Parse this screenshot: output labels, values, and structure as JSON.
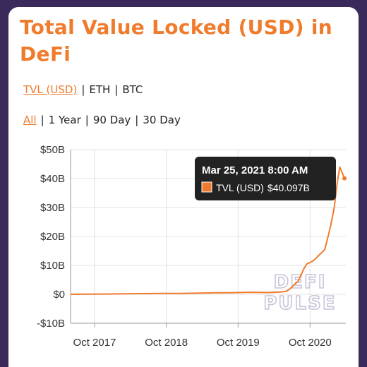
{
  "title": "Total Value Locked (USD) in DeFi",
  "currency_toggle": {
    "options": [
      "TVL (USD)",
      "ETH",
      "BTC"
    ],
    "active": 0
  },
  "range_toggle": {
    "options": [
      "All",
      "1 Year",
      "90 Day",
      "30 Day"
    ],
    "active": 0
  },
  "tooltip": {
    "date": "Mar 25, 2021 8:00 AM",
    "series_label": "TVL (USD)",
    "value": "$40.097B"
  },
  "watermark": [
    "DEFI",
    "PULSE"
  ],
  "colors": {
    "accent": "#f07b2c",
    "line": "#f07b2c",
    "tooltip_bg": "#222222",
    "frame": "#3a2a5c"
  },
  "chart_data": {
    "type": "line",
    "xlabel": "",
    "ylabel": "",
    "ylim": [
      -10,
      50
    ],
    "y_ticks": [
      50,
      40,
      30,
      20,
      10,
      0,
      -10
    ],
    "y_tick_labels": [
      "$50B",
      "$40B",
      "$30B",
      "$20B",
      "$10B",
      "$0",
      "-$10B"
    ],
    "x_ticks": [
      "2017-10-01",
      "2018-10-01",
      "2019-10-01",
      "2020-10-01"
    ],
    "x_tick_labels": [
      "Oct 2017",
      "Oct 2018",
      "Oct 2019",
      "Oct 2020"
    ],
    "xlim": [
      "2017-06-01",
      "2021-04-01"
    ],
    "grid": true,
    "series": [
      {
        "name": "TVL (USD)",
        "x": [
          "2017-06-01",
          "2017-09-01",
          "2017-12-01",
          "2018-03-01",
          "2018-06-01",
          "2018-09-01",
          "2018-12-01",
          "2019-03-01",
          "2019-06-01",
          "2019-09-01",
          "2019-12-01",
          "2020-03-01",
          "2020-05-01",
          "2020-06-01",
          "2020-06-15",
          "2020-07-01",
          "2020-07-15",
          "2020-08-01",
          "2020-08-15",
          "2020-09-01",
          "2020-09-15",
          "2020-10-01",
          "2020-10-15",
          "2020-11-01",
          "2020-11-15",
          "2020-12-01",
          "2020-12-15",
          "2021-01-01",
          "2021-01-15",
          "2021-02-01",
          "2021-02-15",
          "2021-03-01",
          "2021-03-25"
        ],
        "values": [
          0.0,
          0.05,
          0.1,
          0.2,
          0.25,
          0.3,
          0.3,
          0.4,
          0.5,
          0.55,
          0.7,
          0.6,
          0.8,
          1.0,
          1.6,
          2.5,
          3.5,
          4.5,
          6.5,
          9.0,
          10.5,
          11.0,
          11.5,
          12.5,
          13.5,
          14.5,
          15.5,
          20.0,
          24.0,
          30.0,
          38.0,
          44.0,
          40.097
        ]
      }
    ],
    "tooltip_point": {
      "x": "2021-03-25",
      "y": 40.097
    }
  }
}
